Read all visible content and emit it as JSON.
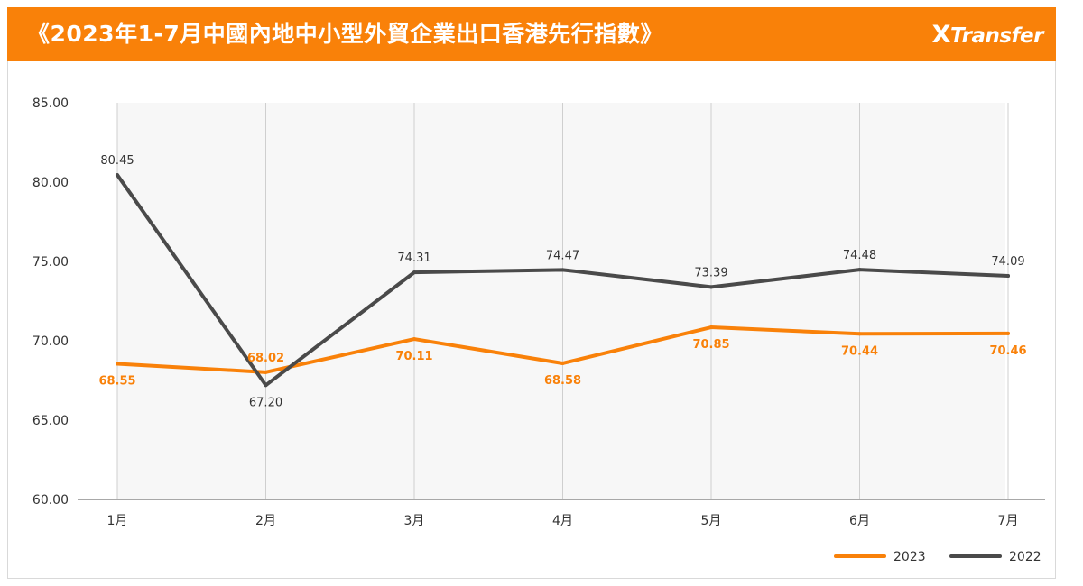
{
  "header": {
    "title": "《2023年1-7月中國內地中小型外貿企業出口香港先行指數》",
    "brand_x": "X",
    "brand_rest": "Transfer"
  },
  "colors": {
    "accent": "#f98109",
    "series_2023": "#f98109",
    "series_2022": "#4a4a4a",
    "plot_bg": "#f7f7f7",
    "grid": "#cfcfcf"
  },
  "chart_data": {
    "type": "line",
    "categories": [
      "1月",
      "2月",
      "3月",
      "4月",
      "5月",
      "6月",
      "7月"
    ],
    "ylim": [
      60,
      85
    ],
    "yticks": [
      "60.00",
      "65.00",
      "70.00",
      "75.00",
      "80.00",
      "85.00"
    ],
    "grid": "vertical",
    "legend_position": "bottom-right",
    "series": [
      {
        "name": "2023",
        "color": "#f98109",
        "values": [
          68.55,
          68.02,
          70.11,
          68.58,
          70.85,
          70.44,
          70.46
        ],
        "labels": [
          "68.55",
          "68.02",
          "70.11",
          "68.58",
          "70.85",
          "70.44",
          "70.46"
        ]
      },
      {
        "name": "2022",
        "color": "#4a4a4a",
        "values": [
          80.45,
          67.2,
          74.31,
          74.47,
          73.39,
          74.48,
          74.09
        ],
        "labels": [
          "80.45",
          "67.20",
          "74.31",
          "74.47",
          "73.39",
          "74.48",
          "74.09"
        ]
      }
    ]
  }
}
